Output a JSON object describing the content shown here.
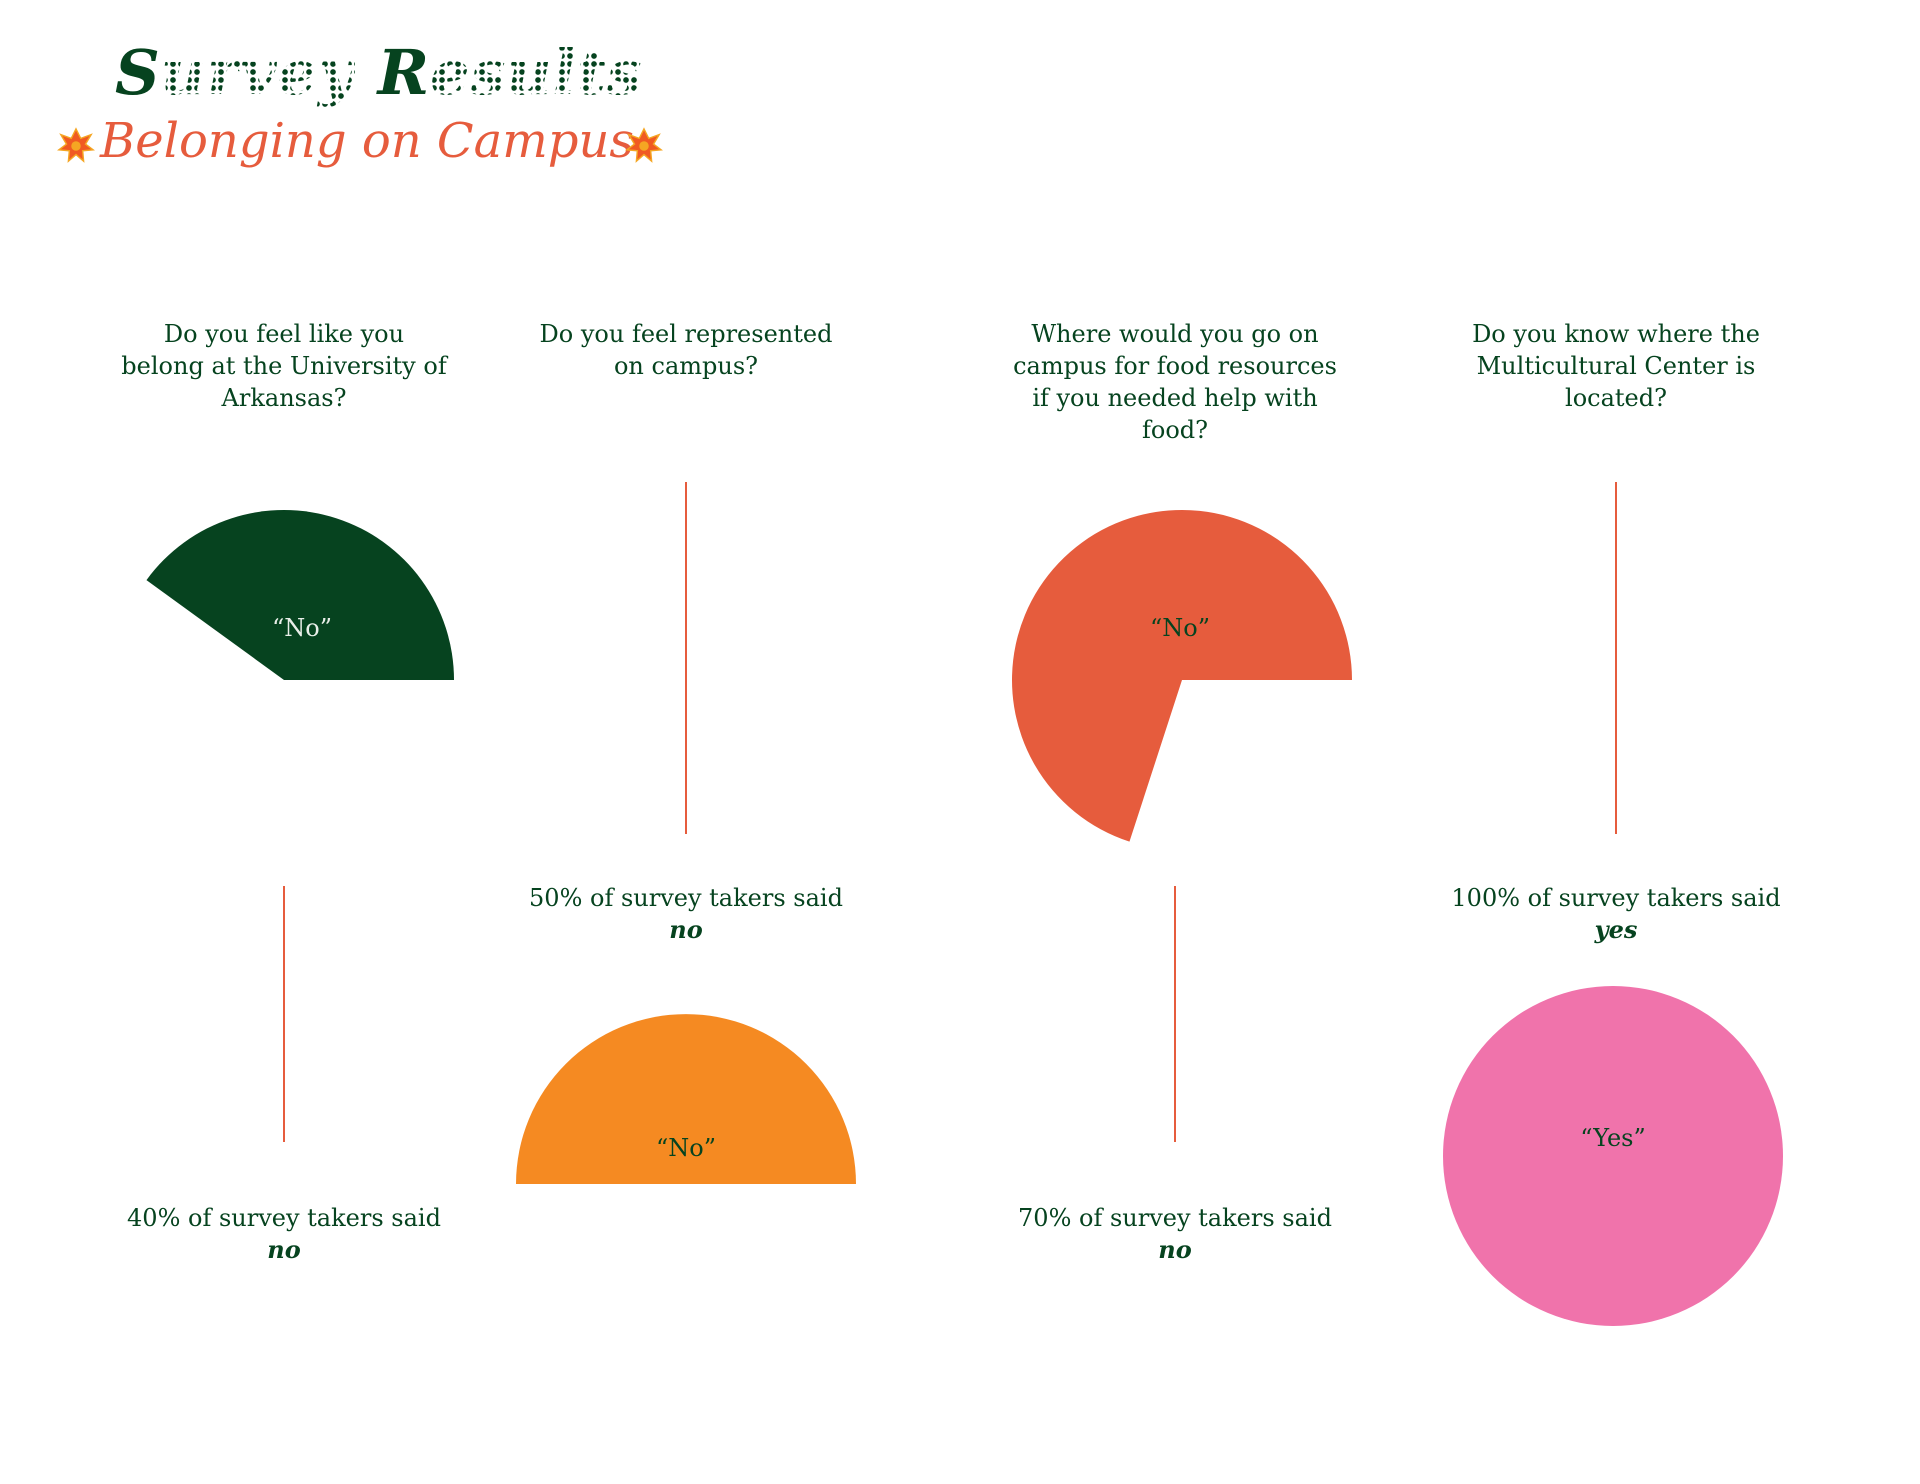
{
  "title": {
    "initial_1": "S",
    "rest_1": "urvey",
    "initial_2": "R",
    "rest_2": "esults",
    "subtitle": "Belonging on Campus"
  },
  "colors": {
    "dark_green": "#06431f",
    "coral": "#e65c3d",
    "orange": "#f58a22",
    "pink": "#f073ab",
    "line": "#e65c3d"
  },
  "chart_data": [
    {
      "type": "pie",
      "question": "Do you feel like you belong at the University of Arkansas?",
      "slice_label": "“No”",
      "percent": 40,
      "answer_prefix": "40% of survey takers said",
      "answer": "no",
      "color": "#06431f",
      "label_color": "#e9efe9"
    },
    {
      "type": "pie",
      "question": "Do you feel represented on campus?",
      "slice_label": "“No”",
      "percent": 50,
      "answer_prefix": "50% of survey takers said",
      "answer": "no",
      "color": "#f58a22",
      "label_color": "#06431f"
    },
    {
      "type": "pie",
      "question": "Where would you go on campus for food resources if you needed help with food?",
      "slice_label": "“No”",
      "percent": 70,
      "answer_prefix": "70% of survey takers said",
      "answer": "no",
      "color": "#e65c3d",
      "label_color": "#06431f"
    },
    {
      "type": "pie",
      "question": "Do you know where the Multicultural Center is located?",
      "slice_label": "“Yes”",
      "percent": 100,
      "answer_prefix": "100% of survey takers said",
      "answer": "yes",
      "color": "#f073ab",
      "label_color": "#06431f"
    }
  ]
}
